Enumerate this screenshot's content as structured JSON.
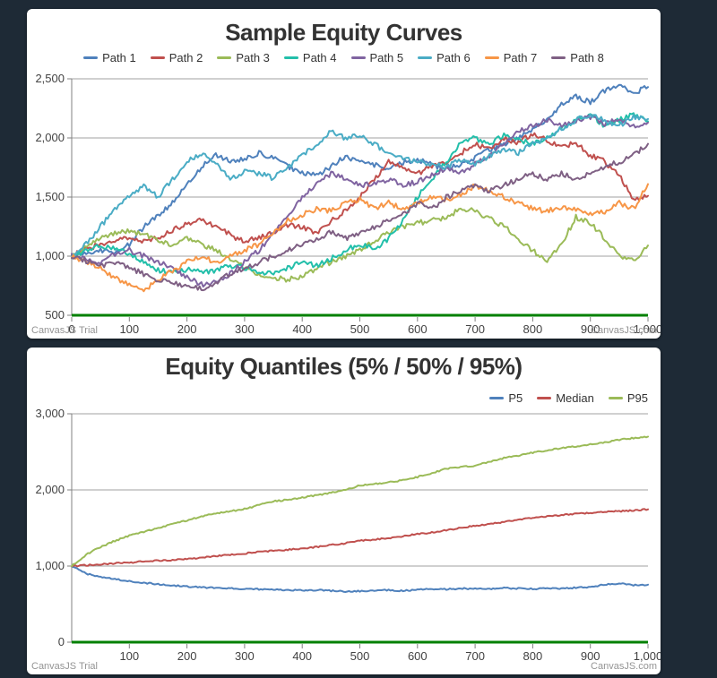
{
  "colors": {
    "background": "#1e2a36",
    "card": "#ffffff",
    "x_axis_line": "#008000",
    "y_axis_line": "#808080",
    "grid": "#a0a0a0",
    "tick_label": "#424242",
    "title": "#333333",
    "watermark": "#949494"
  },
  "chart_data": [
    {
      "type": "line",
      "title": "Sample Equity Curves",
      "xlabel": "",
      "ylabel": "",
      "xlim": [
        0,
        1000
      ],
      "ylim": [
        500,
        2500
      ],
      "x_interval": 100,
      "y_interval": 500,
      "x_tick_start": 0,
      "grid": true,
      "legend_position": "top-center",
      "watermark_left": "CanvasJS Trial",
      "watermark_right": "CanvasJS.com",
      "x": [
        0,
        25,
        50,
        75,
        100,
        125,
        150,
        175,
        200,
        225,
        250,
        275,
        300,
        325,
        350,
        375,
        400,
        425,
        450,
        475,
        500,
        525,
        550,
        575,
        600,
        625,
        650,
        675,
        700,
        725,
        750,
        775,
        800,
        825,
        850,
        875,
        900,
        925,
        950,
        975,
        1000
      ],
      "series": [
        {
          "name": "Path 1",
          "color": "#4F81BC",
          "values": [
            1000,
            1020,
            1050,
            1030,
            1100,
            1250,
            1350,
            1450,
            1600,
            1750,
            1860,
            1800,
            1820,
            1870,
            1830,
            1760,
            1700,
            1680,
            1760,
            1840,
            1800,
            1770,
            1740,
            1790,
            1820,
            1770,
            1740,
            1780,
            1830,
            1900,
            1950,
            2000,
            2080,
            2150,
            2280,
            2350,
            2300,
            2400,
            2460,
            2380,
            2430
          ]
        },
        {
          "name": "Path 2",
          "color": "#C0504E",
          "values": [
            1000,
            1060,
            1100,
            1140,
            1150,
            1120,
            1160,
            1220,
            1280,
            1300,
            1250,
            1180,
            1120,
            1160,
            1200,
            1260,
            1250,
            1200,
            1300,
            1380,
            1500,
            1650,
            1800,
            1750,
            1700,
            1760,
            1800,
            1870,
            1950,
            1900,
            2000,
            1960,
            2040,
            1980,
            1920,
            1960,
            1850,
            1800,
            1680,
            1480,
            1510
          ]
        },
        {
          "name": "Path 3",
          "color": "#9BBB58",
          "values": [
            1000,
            1080,
            1150,
            1200,
            1220,
            1180,
            1140,
            1100,
            1150,
            1100,
            1050,
            980,
            900,
            850,
            820,
            800,
            830,
            900,
            950,
            1000,
            1060,
            1120,
            1200,
            1250,
            1280,
            1300,
            1330,
            1400,
            1380,
            1320,
            1250,
            1150,
            1050,
            950,
            1100,
            1330,
            1280,
            1150,
            1000,
            960,
            1090
          ]
        },
        {
          "name": "Path 4",
          "color": "#23BFAA",
          "values": [
            1000,
            1040,
            1090,
            1060,
            1020,
            950,
            880,
            860,
            890,
            860,
            880,
            920,
            900,
            870,
            850,
            900,
            950,
            920,
            980,
            1050,
            1100,
            1060,
            1150,
            1300,
            1500,
            1650,
            1800,
            1950,
            2000,
            1950,
            2020,
            1980,
            1950,
            2000,
            2080,
            2150,
            2200,
            2100,
            2150,
            2200,
            2140
          ]
        },
        {
          "name": "Path 5",
          "color": "#8064A1",
          "values": [
            1000,
            970,
            950,
            1020,
            1050,
            1000,
            950,
            900,
            820,
            760,
            780,
            850,
            950,
            1050,
            1200,
            1350,
            1500,
            1620,
            1700,
            1650,
            1600,
            1620,
            1650,
            1600,
            1630,
            1680,
            1750,
            1700,
            1780,
            1850,
            1950,
            2050,
            2100,
            2150,
            2100,
            2150,
            2180,
            2120,
            2160,
            2100,
            2130
          ]
        },
        {
          "name": "Path 6",
          "color": "#4AACC5",
          "values": [
            1000,
            1100,
            1250,
            1400,
            1500,
            1600,
            1500,
            1650,
            1800,
            1870,
            1780,
            1650,
            1720,
            1700,
            1660,
            1750,
            1850,
            1950,
            2050,
            2000,
            2020,
            1950,
            1870,
            1820,
            1800,
            1780,
            1750,
            1820,
            1780,
            1850,
            1900,
            1870,
            1950,
            2000,
            2080,
            2150,
            2200,
            2150,
            2100,
            2180,
            2160
          ]
        },
        {
          "name": "Path 7",
          "color": "#F79647",
          "values": [
            1000,
            950,
            900,
            820,
            750,
            710,
            800,
            880,
            950,
            1000,
            950,
            1000,
            1050,
            1100,
            1200,
            1300,
            1350,
            1400,
            1380,
            1450,
            1480,
            1400,
            1450,
            1400,
            1450,
            1500,
            1480,
            1520,
            1600,
            1550,
            1500,
            1450,
            1400,
            1380,
            1420,
            1400,
            1350,
            1380,
            1450,
            1400,
            1610
          ]
        },
        {
          "name": "Path 8",
          "color": "#7F6084",
          "values": [
            1000,
            960,
            920,
            950,
            900,
            850,
            800,
            780,
            750,
            720,
            780,
            850,
            900,
            950,
            1000,
            1050,
            1100,
            1150,
            1200,
            1150,
            1200,
            1250,
            1300,
            1350,
            1450,
            1400,
            1500,
            1550,
            1600,
            1550,
            1600,
            1650,
            1700,
            1650,
            1700,
            1650,
            1700,
            1750,
            1800,
            1850,
            1950
          ]
        }
      ]
    },
    {
      "type": "line",
      "title": "Equity Quantiles (5% / 50% / 95%)",
      "xlabel": "",
      "ylabel": "",
      "xlim": [
        0,
        1000
      ],
      "ylim": [
        0,
        3000
      ],
      "x_interval": 100,
      "y_interval": 1000,
      "x_tick_start": 100,
      "grid": true,
      "legend_position": "top-right",
      "watermark_left": "CanvasJS Trial",
      "watermark_right": "CanvasJS.com",
      "x": [
        0,
        25,
        50,
        75,
        100,
        125,
        150,
        175,
        200,
        225,
        250,
        275,
        300,
        325,
        350,
        375,
        400,
        425,
        450,
        475,
        500,
        525,
        550,
        575,
        600,
        625,
        650,
        675,
        700,
        725,
        750,
        775,
        800,
        825,
        850,
        875,
        900,
        925,
        950,
        975,
        1000
      ],
      "series": [
        {
          "name": "P5",
          "color": "#4F81BC",
          "values": [
            1000,
            900,
            860,
            830,
            800,
            780,
            760,
            745,
            730,
            720,
            715,
            705,
            700,
            695,
            690,
            685,
            680,
            685,
            675,
            665,
            670,
            680,
            685,
            675,
            690,
            700,
            695,
            705,
            700,
            695,
            710,
            705,
            700,
            710,
            705,
            715,
            720,
            760,
            770,
            750,
            755
          ]
        },
        {
          "name": "Median",
          "color": "#C0504E",
          "values": [
            1000,
            1010,
            1020,
            1035,
            1045,
            1060,
            1070,
            1080,
            1090,
            1110,
            1130,
            1150,
            1165,
            1185,
            1200,
            1215,
            1230,
            1250,
            1275,
            1300,
            1330,
            1350,
            1370,
            1390,
            1420,
            1440,
            1470,
            1500,
            1530,
            1550,
            1580,
            1610,
            1630,
            1650,
            1670,
            1690,
            1700,
            1710,
            1720,
            1730,
            1745
          ]
        },
        {
          "name": "P95",
          "color": "#9BBB58",
          "values": [
            1000,
            1150,
            1250,
            1330,
            1400,
            1450,
            1500,
            1550,
            1600,
            1650,
            1690,
            1720,
            1750,
            1800,
            1850,
            1870,
            1900,
            1930,
            1960,
            2000,
            2060,
            2080,
            2100,
            2130,
            2170,
            2220,
            2280,
            2300,
            2320,
            2370,
            2420,
            2450,
            2490,
            2520,
            2550,
            2570,
            2600,
            2620,
            2660,
            2680,
            2700
          ]
        }
      ]
    }
  ]
}
